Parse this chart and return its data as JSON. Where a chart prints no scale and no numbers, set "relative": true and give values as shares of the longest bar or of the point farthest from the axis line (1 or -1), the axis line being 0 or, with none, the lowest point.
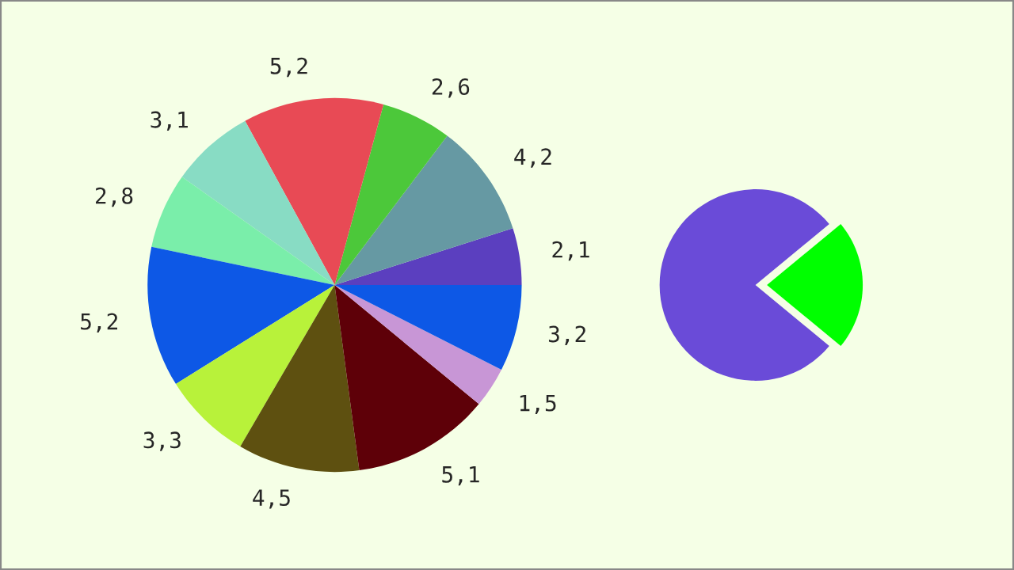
{
  "chart_data": [
    {
      "type": "pie",
      "categories": [
        null,
        null,
        null,
        null,
        null,
        null,
        null,
        null,
        null,
        null,
        null,
        null
      ],
      "values": [
        2.1,
        4.2,
        2.6,
        5.2,
        3.1,
        2.8,
        5.2,
        3.3,
        4.5,
        5.1,
        1.5,
        3.2
      ],
      "value_labels": [
        "2,1",
        "4,2",
        "2,6",
        "5,2",
        "3,1",
        "2,8",
        "5,2",
        "3,3",
        "4,5",
        "5,1",
        "1,5",
        "3,2"
      ],
      "colors": [
        "#5b3fbf",
        "#6699a3",
        "#4cc83a",
        "#e84a55",
        "#88dcc4",
        "#7aeeaa",
        "#0d58e6",
        "#b8f23a",
        "#5e5010",
        "#5e0008",
        "#c896d6",
        "#0d58e6"
      ]
    },
    {
      "type": "pie",
      "relative": true,
      "categories": [
        null,
        null
      ],
      "values": [
        22,
        78
      ],
      "colors": [
        "#00ff00",
        "#6a4bd8"
      ]
    }
  ]
}
